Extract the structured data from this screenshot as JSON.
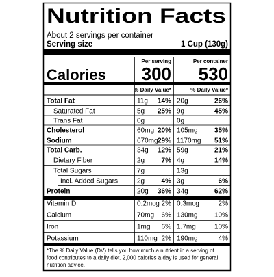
{
  "header": {
    "title": "Nutrition Facts",
    "servings": "About 2 servings per container",
    "serving_size_label": "Serving size",
    "serving_size": "1 Cup (130g)"
  },
  "columns": [
    "Per serving",
    "Per container"
  ],
  "calories": {
    "label": "Calories",
    "per_serving": "300",
    "per_container": "530"
  },
  "dv_header": "% Daily Value*",
  "rows": [
    [
      "Total Fat",
      "11g",
      "14%",
      "20g",
      "26%"
    ],
    [
      "Saturated Fat",
      "5g",
      "25%",
      "9g",
      "45%"
    ],
    [
      "Trans Fat",
      "0g",
      null,
      "0g",
      null
    ],
    [
      "Cholesterol",
      "60mg",
      "20%",
      "105mg",
      "35%"
    ],
    [
      "Sodium",
      "670mg",
      "29%",
      "1170mg",
      "51%"
    ],
    [
      "Total Carb.",
      "34g",
      "12%",
      "59g",
      "21%"
    ],
    [
      "Dietary Fiber",
      "2g",
      "7%",
      "4g",
      "14%"
    ],
    [
      "Total Sugars",
      "7g",
      null,
      "13g",
      null
    ],
    [
      "Incl. Added Sugars",
      "2g",
      "4%",
      "3g",
      "6%"
    ],
    [
      "Protein",
      "20g",
      "36%",
      "34g",
      "62%"
    ],
    [
      "Vitamin D",
      "0.2mcg",
      "2%",
      "0.3mcg",
      "2%"
    ],
    [
      "Calcium",
      "70mg",
      "6%",
      "130mg",
      "10%"
    ],
    [
      "Iron",
      "1mg",
      "6%",
      "1.7mg",
      "10%"
    ],
    [
      "Potassium",
      "110mg",
      "2%",
      "190mg",
      "4%"
    ]
  ],
  "footnote": [
    "*The % Daily Value (DV) tells you how much a nutrient in a serving of",
    "food contributes to a daily diet. 2,000 calories a day is used for general",
    "nutrition advice."
  ]
}
